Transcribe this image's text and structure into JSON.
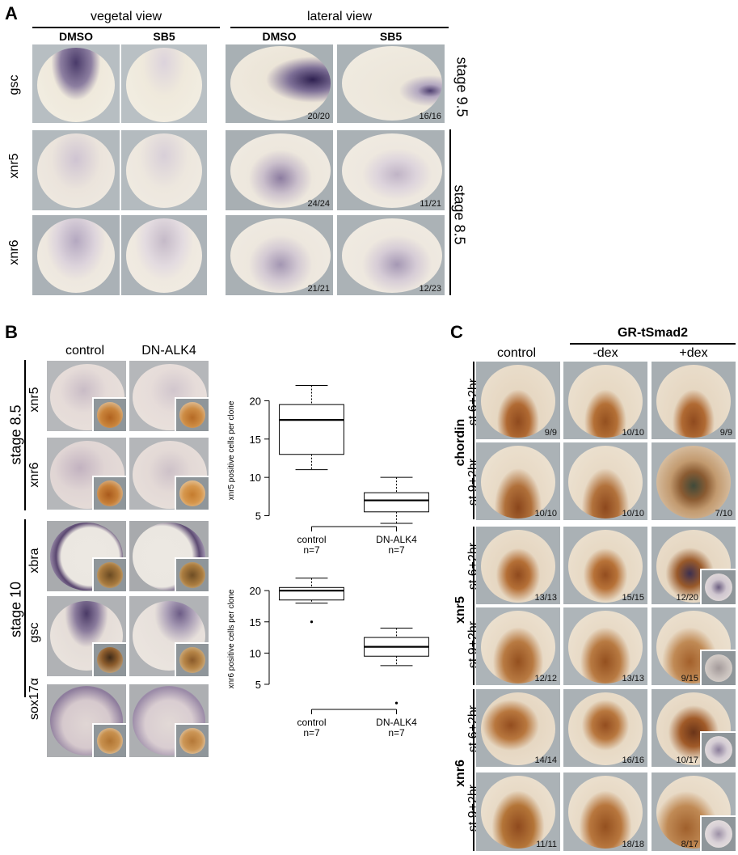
{
  "panel_a": {
    "letter": "A",
    "vegetal_view": "vegetal view",
    "lateral_view": "lateral view",
    "col_dmso_1": "DMSO",
    "col_sb5_1": "SB5",
    "col_dmso_2": "DMSO",
    "col_sb5_2": "SB5",
    "rows": [
      "gsc",
      "xnr5",
      "xnr6"
    ],
    "stage_95": "stage 9.5",
    "stage_85": "stage 8.5",
    "counts": [
      "20/20",
      "16/16",
      "24/24",
      "11/21",
      "21/21",
      "12/23"
    ]
  },
  "panel_b": {
    "letter": "B",
    "col_control": "control",
    "col_dnalk4": "DN-ALK4",
    "rows": [
      "xnr5",
      "xnr6",
      "xbra",
      "gsc",
      "sox17α"
    ],
    "stage_85": "stage 8.5",
    "stage_10": "stage 10"
  },
  "panel_c": {
    "letter": "C",
    "gr_tsmad2": "GR-tSmad2",
    "col_control": "control",
    "col_minus_dex": "-dex",
    "col_plus_dex": "+dex",
    "genes": [
      "chordin",
      "xnr5",
      "xnr6"
    ],
    "rows": [
      "st 6+2hr",
      "st 9+2hr",
      "st 6+2hr",
      "st 9+2hr",
      "st 6+2hr",
      "st 9+2hr"
    ],
    "counts": [
      [
        "9/9",
        "10/10",
        "9/9"
      ],
      [
        "10/10",
        "10/10",
        "7/10"
      ],
      [
        "13/13",
        "15/15",
        "12/20"
      ],
      [
        "12/12",
        "13/13",
        "9/15"
      ],
      [
        "14/14",
        "16/16",
        "10/17"
      ],
      [
        "11/11",
        "18/18",
        "8/17"
      ]
    ]
  },
  "chart_data": [
    {
      "type": "box",
      "ylabel": "xnr5 positive cells per clone",
      "ylim": [
        4,
        23
      ],
      "yticks": [
        5,
        10,
        15,
        20
      ],
      "categories": [
        "control\nn=7",
        "DN-ALK4\nn=7"
      ],
      "cat_top": [
        "control",
        "DN-ALK4"
      ],
      "cat_bottom": [
        "n=7",
        "n=7"
      ],
      "boxes": [
        {
          "whisker_low": 11,
          "q1": 13,
          "median": 17.5,
          "q3": 19.5,
          "whisker_high": 22,
          "outliers": []
        },
        {
          "whisker_low": 4,
          "q1": 5.5,
          "median": 7,
          "q3": 8,
          "whisker_high": 10,
          "outliers": []
        }
      ]
    },
    {
      "type": "box",
      "ylabel": "xnr6 positive cells per clone",
      "ylim": [
        1.5,
        23
      ],
      "yticks": [
        5,
        10,
        15,
        20
      ],
      "categories": [
        "control\nn=7",
        "DN-ALK4\nn=7"
      ],
      "cat_top": [
        "control",
        "DN-ALK4"
      ],
      "cat_bottom": [
        "n=7",
        "n=7"
      ],
      "boxes": [
        {
          "whisker_low": 18,
          "q1": 18.5,
          "median": 20,
          "q3": 20.5,
          "whisker_high": 22,
          "outliers": [
            15
          ]
        },
        {
          "whisker_low": 8,
          "q1": 9.5,
          "median": 11,
          "q3": 12.5,
          "whisker_high": 14,
          "outliers": [
            2
          ]
        }
      ]
    }
  ]
}
